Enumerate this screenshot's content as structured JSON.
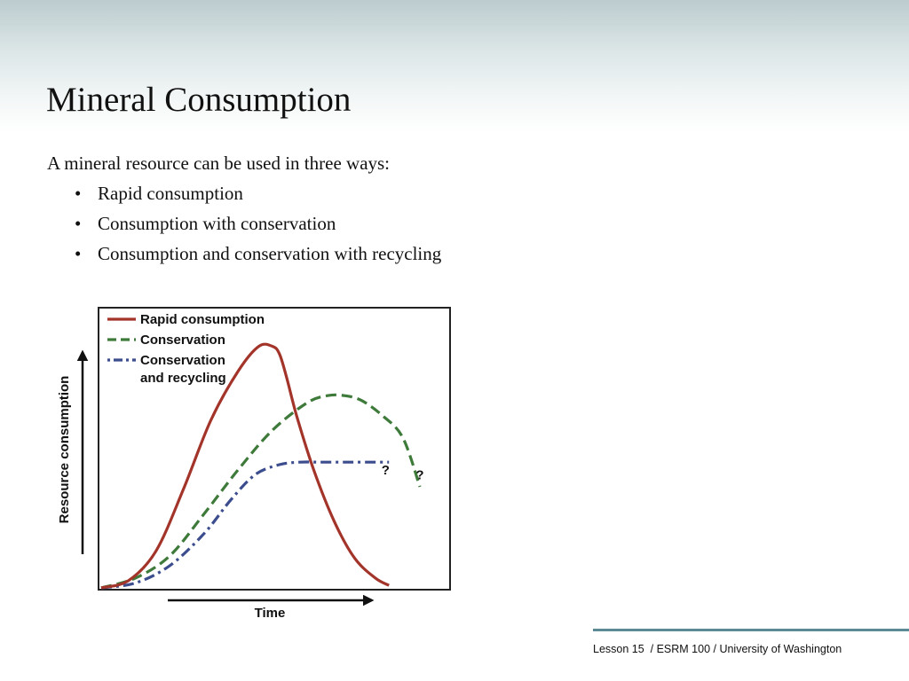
{
  "slide": {
    "title": "Mineral Consumption",
    "intro": "A mineral resource can be used in three ways:",
    "bullets": [
      "Rapid consumption",
      "Consumption with conservation",
      "Consumption and conservation with recycling"
    ],
    "bullet_glyph": "•",
    "footer": "Lesson 15  / ESRM 100 / University of Washington"
  },
  "chart_data": {
    "type": "line",
    "xlabel": "Time",
    "ylabel": "Resource consumption",
    "xlim": [
      0,
      100
    ],
    "ylim": [
      0,
      100
    ],
    "axis_arrows": true,
    "ticks": false,
    "grid": false,
    "legend_position": "top-left",
    "series": [
      {
        "name": "Rapid consumption",
        "legend_label": [
          "Rapid consumption"
        ],
        "color": "#a3342a",
        "style": "solid",
        "x": [
          0,
          8,
          16,
          24,
          32,
          40,
          46,
          50,
          52,
          54,
          57,
          62,
          68,
          74,
          80,
          84
        ],
        "y": [
          0,
          3,
          15,
          40,
          68,
          88,
          98,
          98,
          95,
          86,
          70,
          48,
          27,
          12,
          4,
          1
        ]
      },
      {
        "name": "Conservation",
        "legend_label": [
          "Conservation"
        ],
        "color": "#3e7a3a",
        "style": "dashed",
        "x": [
          0,
          10,
          20,
          30,
          40,
          50,
          60,
          66,
          71,
          76,
          82,
          88,
          93
        ],
        "y": [
          0,
          4,
          13,
          30,
          48,
          64,
          75,
          78,
          78,
          76,
          70,
          61,
          41
        ]
      },
      {
        "name": "Conservation and recycling",
        "legend_label": [
          "Conservation",
          "and recycling"
        ],
        "color": "#3c4d8e",
        "style": "dashdot",
        "x": [
          0,
          10,
          20,
          30,
          38,
          45,
          52,
          58,
          64,
          70,
          76,
          84
        ],
        "y": [
          0,
          2,
          9,
          22,
          36,
          46,
          50,
          51,
          51,
          51,
          51,
          51
        ]
      }
    ],
    "annotations": [
      {
        "text": "?",
        "x": 83,
        "y": 46
      },
      {
        "text": "?",
        "x": 93,
        "y": 44
      }
    ]
  }
}
